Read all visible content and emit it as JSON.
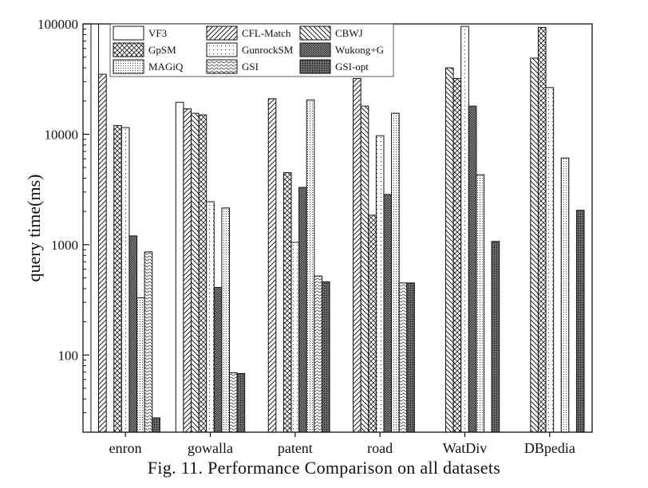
{
  "caption": "Fig. 11.  Performance Comparison on all datasets",
  "chart_data": {
    "type": "bar",
    "ylabel": "query time(ms)",
    "yscale": "log",
    "ylim": [
      20,
      100000
    ],
    "yticks": [
      100,
      1000,
      10000,
      100000
    ],
    "ytick_labels": [
      "100",
      "1000",
      "10000",
      "100000"
    ],
    "categories": [
      "enron",
      "gowalla",
      "patent",
      "road",
      "WatDiv",
      "DBpedia"
    ],
    "legend_position": "top-left",
    "series": [
      {
        "name": "VF3",
        "pattern": "none",
        "values": [
          100000,
          19500,
          null,
          null,
          null,
          null
        ]
      },
      {
        "name": "CFL-Match",
        "pattern": "diag-fwd",
        "values": [
          35000,
          17000,
          21000,
          32000,
          null,
          null
        ]
      },
      {
        "name": "CBWJ",
        "pattern": "diag-back",
        "values": [
          null,
          15500,
          null,
          18000,
          40000,
          49000
        ]
      },
      {
        "name": "GpSM",
        "pattern": "cross",
        "values": [
          12000,
          15000,
          4500,
          1850,
          32000,
          93000
        ]
      },
      {
        "name": "GunrockSM",
        "pattern": "dots-sparse",
        "values": [
          11500,
          2450,
          1050,
          9700,
          95000,
          26500
        ]
      },
      {
        "name": "Wukong+G",
        "pattern": "crosshatch-dense",
        "values": [
          1200,
          410,
          3300,
          2850,
          18000,
          null
        ]
      },
      {
        "name": "MAGiQ",
        "pattern": "dots-dense",
        "values": [
          330,
          2150,
          20500,
          15500,
          4300,
          6100
        ]
      },
      {
        "name": "GSI",
        "pattern": "wave",
        "values": [
          860,
          69,
          520,
          450,
          null,
          null
        ]
      },
      {
        "name": "GSI-opt",
        "pattern": "dark-dots",
        "values": [
          27,
          68,
          460,
          450,
          1070,
          2050
        ]
      }
    ]
  }
}
